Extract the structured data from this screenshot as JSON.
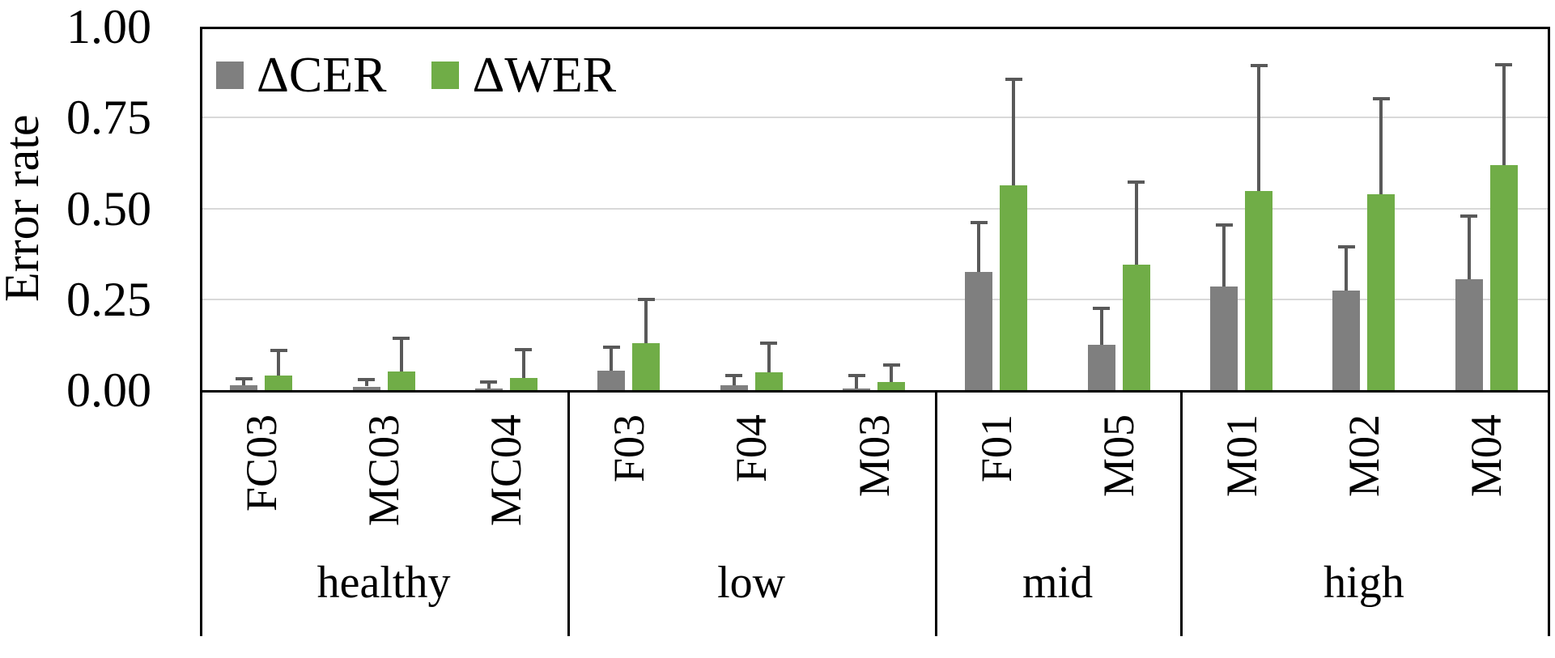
{
  "figure": {
    "y_axis": {
      "title": "Error rate",
      "ticks": [
        {
          "label": "1.00",
          "value": 1.0
        },
        {
          "label": "0.75",
          "value": 0.75
        },
        {
          "label": "0.50",
          "value": 0.5
        },
        {
          "label": "0.25",
          "value": 0.25
        },
        {
          "label": "0.00",
          "value": 0.0
        }
      ]
    },
    "legend": [
      {
        "name": "ΔCER",
        "color": "#7f7f7f"
      },
      {
        "name": "ΔWER",
        "color": "#70ad47"
      }
    ]
  },
  "chart_data": {
    "type": "bar",
    "title": "",
    "xlabel": "",
    "ylabel": "Error rate",
    "ylim": [
      0.0,
      1.0
    ],
    "gridlines": [
      0.25,
      0.5,
      0.75
    ],
    "grid": true,
    "legend_position": "top-left-inside",
    "error_bars": "upper-only",
    "series": [
      {
        "name": "ΔCER",
        "key": "cer",
        "err_key": "cer_err_top",
        "color": "#7f7f7f"
      },
      {
        "name": "ΔWER",
        "key": "wer",
        "err_key": "wer_err_top",
        "color": "#70ad47"
      }
    ],
    "colors": {
      "cer_bar": "#7f7f7f",
      "wer_bar": "#70ad47",
      "error_bar": "#595959",
      "gridline": "#d9d9d9",
      "axis": "#000000"
    },
    "groups": [
      {
        "label": "healthy",
        "speakers": [
          {
            "id": "FC03",
            "cer": 0.013,
            "cer_err_top": 0.031,
            "wer": 0.04,
            "wer_err_top": 0.109
          },
          {
            "id": "MC03",
            "cer": 0.01,
            "cer_err_top": 0.029,
            "wer": 0.051,
            "wer_err_top": 0.143
          },
          {
            "id": "MC04",
            "cer": 0.005,
            "cer_err_top": 0.023,
            "wer": 0.034,
            "wer_err_top": 0.111
          }
        ]
      },
      {
        "label": "low",
        "speakers": [
          {
            "id": "F03",
            "cer": 0.053,
            "cer_err_top": 0.118,
            "wer": 0.13,
            "wer_err_top": 0.249
          },
          {
            "id": "F04",
            "cer": 0.013,
            "cer_err_top": 0.04,
            "wer": 0.048,
            "wer_err_top": 0.129
          },
          {
            "id": "M03",
            "cer": 0.005,
            "cer_err_top": 0.041,
            "wer": 0.022,
            "wer_err_top": 0.07
          }
        ]
      },
      {
        "label": "mid",
        "speakers": [
          {
            "id": "F01",
            "cer": 0.325,
            "cer_err_top": 0.462,
            "wer": 0.563,
            "wer_err_top": 0.856
          },
          {
            "id": "M05",
            "cer": 0.125,
            "cer_err_top": 0.226,
            "wer": 0.345,
            "wer_err_top": 0.573
          }
        ]
      },
      {
        "label": "high",
        "speakers": [
          {
            "id": "M01",
            "cer": 0.285,
            "cer_err_top": 0.455,
            "wer": 0.548,
            "wer_err_top": 0.892
          },
          {
            "id": "M02",
            "cer": 0.273,
            "cer_err_top": 0.394,
            "wer": 0.538,
            "wer_err_top": 0.801
          },
          {
            "id": "M04",
            "cer": 0.306,
            "cer_err_top": 0.479,
            "wer": 0.619,
            "wer_err_top": 0.896
          }
        ]
      }
    ]
  }
}
